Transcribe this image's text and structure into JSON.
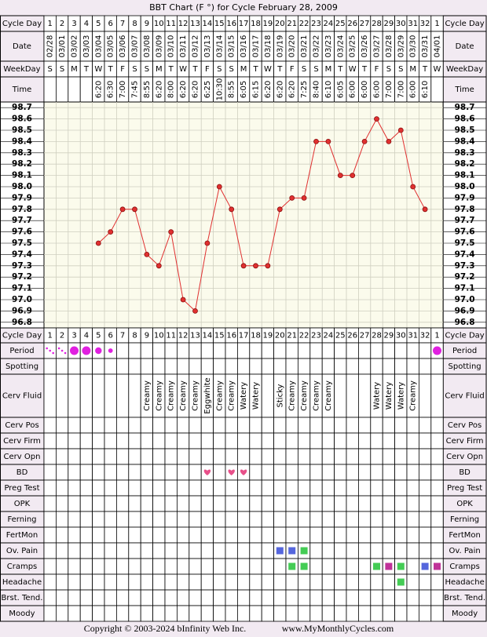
{
  "title": "BBT Chart (F °) for Cycle February 28, 2009",
  "header_rows": [
    {
      "label": "Cycle Day",
      "values": [
        1,
        2,
        3,
        4,
        5,
        6,
        7,
        8,
        9,
        10,
        11,
        12,
        13,
        14,
        15,
        16,
        17,
        18,
        19,
        20,
        21,
        22,
        23,
        24,
        25,
        26,
        27,
        28,
        29,
        30,
        31,
        32,
        1
      ]
    },
    {
      "label": "Date",
      "values": [
        "02/28",
        "03/01",
        "03/02",
        "03/03",
        "03/04",
        "03/05",
        "03/06",
        "03/07",
        "03/08",
        "03/09",
        "03/10",
        "03/11",
        "03/12",
        "03/13",
        "03/14",
        "03/15",
        "03/16",
        "03/17",
        "03/18",
        "03/19",
        "03/20",
        "03/21",
        "03/22",
        "03/23",
        "03/24",
        "03/25",
        "03/26",
        "03/27",
        "03/28",
        "03/29",
        "03/30",
        "03/31",
        "04/01"
      ]
    },
    {
      "label": "WeekDay",
      "values": [
        "S",
        "S",
        "M",
        "T",
        "W",
        "T",
        "F",
        "S",
        "S",
        "M",
        "T",
        "W",
        "T",
        "F",
        "S",
        "S",
        "M",
        "T",
        "W",
        "T",
        "F",
        "S",
        "S",
        "M",
        "T",
        "W",
        "T",
        "F",
        "S",
        "S",
        "M",
        "T",
        "W"
      ]
    },
    {
      "label": "Time",
      "values": [
        null,
        null,
        null,
        null,
        "6:20",
        "6:30",
        "7:00",
        "7:45",
        "8:55",
        "6:20",
        "8:00",
        "6:20",
        "6:20",
        "6:25",
        "10:30",
        "8:55",
        "6:05",
        "6:15",
        "6:20",
        "6:20",
        "6:20",
        "7:25",
        "8:40",
        "6:10",
        "6:05",
        "6:00",
        "6:00",
        "6:00",
        "7:00",
        "7:00",
        "6:00",
        "6:10",
        null
      ]
    }
  ],
  "chart_data": {
    "type": "line",
    "color": "#e03030",
    "grid": true,
    "values": [
      null,
      null,
      null,
      null,
      97.5,
      97.6,
      97.8,
      97.8,
      97.4,
      97.3,
      97.6,
      97.0,
      96.9,
      97.5,
      98.0,
      97.8,
      97.3,
      97.3,
      97.3,
      97.8,
      97.9,
      97.9,
      98.4,
      98.4,
      98.1,
      98.1,
      98.4,
      98.6,
      98.4,
      98.5,
      98.0,
      97.8,
      null
    ],
    "ylim": [
      96.75,
      98.75
    ],
    "yticks": [
      98.7,
      98.6,
      98.5,
      98.4,
      98.3,
      98.2,
      98.1,
      {
        "value": 98.0,
        "label": "98.0"
      },
      97.9,
      97.8,
      97.7,
      97.6,
      97.5,
      97.4,
      97.3,
      97.2,
      97.1,
      {
        "value": 97.0,
        "label": "97.0"
      },
      96.9,
      96.8
    ]
  },
  "period": {
    "label": "Period",
    "color": "#e020e0",
    "values": [
      1,
      1,
      4,
      4,
      3,
      2,
      null,
      null,
      null,
      null,
      null,
      null,
      null,
      null,
      null,
      null,
      null,
      null,
      null,
      null,
      null,
      null,
      null,
      null,
      null,
      null,
      null,
      null,
      null,
      null,
      null,
      null,
      4
    ]
  },
  "rows": [
    {
      "label": "Spotting"
    },
    {
      "label": "Cerv Fluid",
      "symbol": "text",
      "values": [
        null,
        null,
        null,
        null,
        null,
        null,
        null,
        null,
        "Creamy",
        "Creamy",
        "Creamy",
        "Creamy",
        "Creamy",
        "Eggwhite",
        "Creamy",
        "Creamy",
        "Watery",
        "Watery",
        null,
        "Sticky",
        "Creamy",
        "Creamy",
        "Creamy",
        "Creamy",
        null,
        null,
        null,
        "Watery",
        "Watery",
        "Watery",
        "Creamy",
        null,
        null
      ]
    },
    {
      "label": "Cerv Pos"
    },
    {
      "label": "Cerv Firm"
    },
    {
      "label": "Cerv Opn"
    },
    {
      "label": "BD",
      "symbol": "heart",
      "values": [
        null,
        null,
        null,
        null,
        null,
        null,
        null,
        null,
        null,
        null,
        null,
        null,
        null,
        "#e8508a",
        null,
        "#e8508a",
        "#e8508a",
        null,
        null,
        null,
        null,
        null,
        null,
        null,
        null,
        null,
        null,
        null,
        null,
        null,
        null,
        null,
        null
      ]
    },
    {
      "label": "Preg Test"
    },
    {
      "label": "OPK"
    },
    {
      "label": "Ferning"
    },
    {
      "label": "FertMon"
    },
    {
      "label": "Ov. Pain",
      "symbol": "square",
      "values": [
        null,
        null,
        null,
        null,
        null,
        null,
        null,
        null,
        null,
        null,
        null,
        null,
        null,
        null,
        null,
        null,
        null,
        null,
        null,
        "#5566dd",
        "#5566dd",
        "#44cc55",
        null,
        null,
        null,
        null,
        null,
        null,
        null,
        null,
        null,
        null,
        null
      ]
    },
    {
      "label": "Cramps",
      "symbol": "square",
      "values": [
        null,
        null,
        null,
        null,
        null,
        null,
        null,
        null,
        null,
        null,
        null,
        null,
        null,
        null,
        null,
        null,
        null,
        null,
        null,
        null,
        "#44cc55",
        "#44cc55",
        null,
        null,
        null,
        null,
        null,
        "#44cc55",
        "#c03399",
        "#44cc55",
        null,
        "#5566dd",
        "#c03399"
      ]
    },
    {
      "label": "Headache",
      "symbol": "square",
      "values": [
        null,
        null,
        null,
        null,
        null,
        null,
        null,
        null,
        null,
        null,
        null,
        null,
        null,
        null,
        null,
        null,
        null,
        null,
        null,
        null,
        null,
        null,
        null,
        null,
        null,
        null,
        null,
        null,
        null,
        "#44cc55",
        null,
        null,
        null
      ]
    },
    {
      "label": "Brst. Tend."
    },
    {
      "label": "Moody"
    }
  ],
  "footer": {
    "copyright": "Copyright © 2003-2024 bInfinity Web Inc.",
    "site": "www.MyMonthlyCycles.com"
  }
}
